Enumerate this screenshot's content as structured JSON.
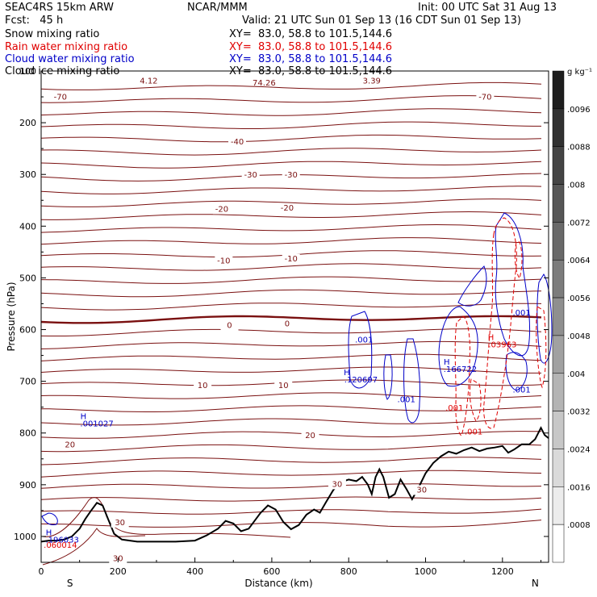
{
  "header": {
    "model": "SEAC4RS 15km ARW",
    "forecast": "Fcst:   45 h",
    "agency": "NCAR/MMM",
    "init": "Init: 00 UTC Sat 31 Aug 13",
    "valid": "Valid: 21 UTC Sun 01 Sep 13 (16 CDT Sun 01 Sep 13)",
    "fields": [
      {
        "name": "Snow mixing ratio",
        "xy": "XY=  83.0, 58.8 to 101.5,144.6",
        "color": "#000000"
      },
      {
        "name": "Rain water mixing ratio",
        "xy": "XY=  83.0, 58.8 to 101.5,144.6",
        "color": "#e00000"
      },
      {
        "name": "Cloud water mixing ratio",
        "xy": "XY=  83.0, 58.8 to 101.5,144.6",
        "color": "#0000c8"
      },
      {
        "name": "Cloud ice mixing ratio",
        "xy": "XY=  83.0, 58.8 to 101.5,144.6",
        "color": "#000000"
      }
    ]
  },
  "chart_data": {
    "type": "cross-section contour",
    "xlabel": "Distance (km)",
    "ylabel": "Pressure (hPa)",
    "xlim": [
      0,
      1320
    ],
    "ylim": [
      1050,
      100
    ],
    "x_ticks": [
      0,
      200,
      400,
      600,
      800,
      1000,
      1200
    ],
    "y_ticks": [
      200,
      300,
      400,
      500,
      600,
      700,
      800,
      900,
      1000
    ],
    "x_end_labels": {
      "left": "S",
      "right": "N"
    },
    "colorbar": {
      "unit": "g kg⁻¹",
      "labels": [
        ".0096",
        ".0088",
        ".008",
        ".0072",
        ".0064",
        ".0056",
        ".0048",
        ".004",
        ".0032",
        ".0024",
        ".0016",
        ".0008"
      ]
    },
    "temperature_isotherms_c": [
      -70,
      -60,
      -50,
      -40,
      -30,
      -20,
      -10,
      0,
      10,
      20,
      30
    ],
    "temperature_labels": [
      {
        "text": "-70",
        "x": 50,
        "p": 155
      },
      {
        "text": "-70",
        "x": 1155,
        "p": 155
      },
      {
        "text": "-40",
        "x": 510,
        "p": 242
      },
      {
        "text": "-30",
        "x": 545,
        "p": 306
      },
      {
        "text": "-30",
        "x": 650,
        "p": 306
      },
      {
        "text": "-20",
        "x": 470,
        "p": 372
      },
      {
        "text": "-20",
        "x": 640,
        "p": 370
      },
      {
        "text": "-10",
        "x": 475,
        "p": 472
      },
      {
        "text": "-10",
        "x": 650,
        "p": 468
      },
      {
        "text": "0",
        "x": 490,
        "p": 597
      },
      {
        "text": "0",
        "x": 640,
        "p": 594
      },
      {
        "text": "10",
        "x": 420,
        "p": 713
      },
      {
        "text": "10",
        "x": 630,
        "p": 713
      },
      {
        "text": "20",
        "x": 75,
        "p": 828
      },
      {
        "text": "20",
        "x": 700,
        "p": 810
      },
      {
        "text": "30",
        "x": 205,
        "p": 978
      },
      {
        "text": "30",
        "x": 770,
        "p": 904
      },
      {
        "text": "30",
        "x": 990,
        "p": 915
      },
      {
        "text": "30",
        "x": 200,
        "p": 1048
      }
    ],
    "cloud_labels": [
      {
        "text": "H",
        "x": 110,
        "p": 773,
        "color": "#0000c8"
      },
      {
        "text": ".001027",
        "x": 145,
        "p": 787,
        "color": "#0000c8"
      },
      {
        "text": "H",
        "x": 795,
        "p": 688,
        "color": "#0000c8"
      },
      {
        "text": ".120697",
        "x": 832,
        "p": 702,
        "color": "#0000c8"
      },
      {
        "text": ".001",
        "x": 840,
        "p": 625,
        "color": "#0000c8"
      },
      {
        "text": ".001",
        "x": 950,
        "p": 740,
        "color": "#0000c8"
      },
      {
        "text": "H",
        "x": 1055,
        "p": 668,
        "color": "#0000c8"
      },
      {
        "text": ".166722",
        "x": 1090,
        "p": 682,
        "color": "#0000c8"
      },
      {
        "text": ".001",
        "x": 1250,
        "p": 573,
        "color": "#0000c8"
      },
      {
        "text": ".001",
        "x": 1250,
        "p": 722,
        "color": "#0000c8"
      },
      {
        "text": "H",
        "x": 20,
        "p": 998,
        "color": "#0000c8"
      },
      {
        "text": ".196033",
        "x": 55,
        "p": 1012,
        "color": "#0000c8"
      }
    ],
    "rain_labels": [
      {
        "text": "H",
        "x": 1170,
        "p": 620,
        "color": "#e00000"
      },
      {
        "text": ".03963",
        "x": 1200,
        "p": 634,
        "color": "#e00000"
      },
      {
        "text": ".001",
        "x": 1075,
        "p": 757,
        "color": "#e00000"
      },
      {
        "text": ".001",
        "x": 1125,
        "p": 803,
        "color": "#e00000"
      },
      {
        "text": ".060014",
        "x": 50,
        "p": 1022,
        "color": "#e00000"
      }
    ],
    "top_labels": [
      {
        "text": "74.26",
        "x": 580,
        "p": 128
      },
      {
        "text": "3.39",
        "x": 860,
        "p": 124
      },
      {
        "text": "4.12",
        "x": 280,
        "p": 124
      }
    ],
    "terrain_pressure": [
      [
        0,
        1010
      ],
      [
        20,
        1008
      ],
      [
        40,
        1008
      ],
      [
        60,
        1006
      ],
      [
        80,
        1000
      ],
      [
        100,
        985
      ],
      [
        115,
        966
      ],
      [
        130,
        950
      ],
      [
        145,
        935
      ],
      [
        160,
        940
      ],
      [
        175,
        968
      ],
      [
        190,
        995
      ],
      [
        210,
        1006
      ],
      [
        250,
        1010
      ],
      [
        300,
        1010
      ],
      [
        350,
        1010
      ],
      [
        400,
        1008
      ],
      [
        430,
        998
      ],
      [
        460,
        985
      ],
      [
        480,
        970
      ],
      [
        500,
        975
      ],
      [
        520,
        990
      ],
      [
        540,
        985
      ],
      [
        555,
        970
      ],
      [
        570,
        955
      ],
      [
        590,
        940
      ],
      [
        610,
        948
      ],
      [
        630,
        972
      ],
      [
        650,
        986
      ],
      [
        670,
        978
      ],
      [
        690,
        958
      ],
      [
        710,
        948
      ],
      [
        725,
        954
      ],
      [
        740,
        935
      ],
      [
        760,
        910
      ],
      [
        780,
        895
      ],
      [
        800,
        890
      ],
      [
        820,
        893
      ],
      [
        835,
        885
      ],
      [
        850,
        900
      ],
      [
        860,
        918
      ],
      [
        870,
        885
      ],
      [
        880,
        870
      ],
      [
        890,
        885
      ],
      [
        905,
        925
      ],
      [
        920,
        918
      ],
      [
        935,
        890
      ],
      [
        950,
        908
      ],
      [
        965,
        928
      ],
      [
        980,
        908
      ],
      [
        1000,
        878
      ],
      [
        1020,
        858
      ],
      [
        1040,
        845
      ],
      [
        1060,
        836
      ],
      [
        1080,
        840
      ],
      [
        1100,
        833
      ],
      [
        1120,
        828
      ],
      [
        1140,
        835
      ],
      [
        1160,
        830
      ],
      [
        1180,
        828
      ],
      [
        1200,
        825
      ],
      [
        1215,
        838
      ],
      [
        1230,
        832
      ],
      [
        1250,
        822
      ],
      [
        1270,
        822
      ],
      [
        1285,
        812
      ],
      [
        1300,
        790
      ],
      [
        1310,
        804
      ],
      [
        1320,
        810
      ]
    ]
  }
}
